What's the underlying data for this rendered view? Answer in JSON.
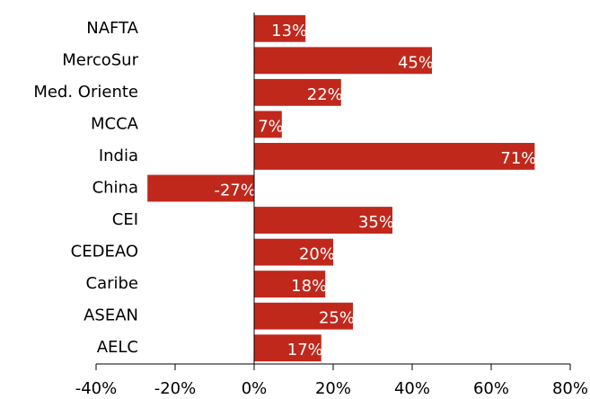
{
  "chart_data": {
    "type": "bar",
    "orientation": "horizontal",
    "color": "#c0281c",
    "categories": [
      "NAFTA",
      "MercoSur",
      "Med. Oriente",
      "MCCA",
      "India",
      "China",
      "CEI",
      "CEDEAO",
      "Caribe",
      "ASEAN",
      "AELC"
    ],
    "values": [
      13,
      45,
      22,
      7,
      71,
      -27,
      35,
      20,
      18,
      25,
      17
    ],
    "value_labels": [
      "13%",
      "45%",
      "22%",
      "7%",
      "71%",
      "-27%",
      "35%",
      "20%",
      "18%",
      "25%",
      "17%"
    ],
    "xlim": [
      -40,
      80
    ],
    "xticks": [
      {
        "value": -40,
        "label": "-40%"
      },
      {
        "value": -20,
        "label": "-20%"
      },
      {
        "value": 0,
        "label": "0%"
      },
      {
        "value": 20,
        "label": "20%"
      },
      {
        "value": 40,
        "label": "40%"
      },
      {
        "value": 60,
        "label": "60%"
      },
      {
        "value": 80,
        "label": "80%"
      }
    ]
  }
}
